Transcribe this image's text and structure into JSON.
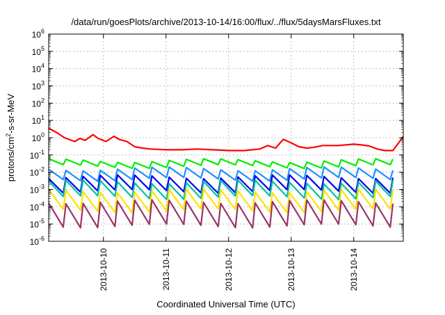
{
  "chart_data": {
    "type": "line",
    "title": "/data/run/goesPlots/archive/2013-10-14/16:00/flux/../flux/5daysMarsFluxes.txt",
    "xlabel": "Coordinated Universal Time (UTC)",
    "ylabel": {
      "base": "protons/cm",
      "sup": "2",
      "rest": "-s-sr-MeV"
    },
    "x_range": [
      "2013-10-09T03:00",
      "2013-10-14T19:00"
    ],
    "x_ticks": [
      "2013-10-10",
      "2013-10-11",
      "2013-10-12",
      "2013-10-13",
      "2013-10-14"
    ],
    "y_scale": "log",
    "ylim": [
      1e-06,
      1000000.0
    ],
    "y_ticks": [
      {
        "value": 1e-06,
        "base": "10",
        "exp": "-6"
      },
      {
        "value": 1e-05,
        "base": "10",
        "exp": "-5"
      },
      {
        "value": 0.0001,
        "base": "10",
        "exp": "-4"
      },
      {
        "value": 0.001,
        "base": "10",
        "exp": "-3"
      },
      {
        "value": 0.01,
        "base": "10",
        "exp": "-2"
      },
      {
        "value": 0.1,
        "base": "10",
        "exp": "-1"
      },
      {
        "value": 1,
        "base": "10",
        "exp": "0"
      },
      {
        "value": 10,
        "base": "10",
        "exp": "1"
      },
      {
        "value": 100,
        "base": "10",
        "exp": "2"
      },
      {
        "value": 1000,
        "base": "10",
        "exp": "3"
      },
      {
        "value": 10000,
        "base": "10",
        "exp": "4"
      },
      {
        "value": 100000,
        "base": "10",
        "exp": "5"
      },
      {
        "value": 1000000,
        "base": "10",
        "exp": "6"
      }
    ],
    "grid": true,
    "series": [
      {
        "color": "#ff0000",
        "x": [
          "2013-10-09T03:00",
          "2013-10-09T06:00",
          "2013-10-09T09:00",
          "2013-10-09T13:00",
          "2013-10-09T15:00",
          "2013-10-09T17:00",
          "2013-10-09T20:00",
          "2013-10-09T22:00",
          "2013-10-10T01:00",
          "2013-10-10T04:00",
          "2013-10-10T06:00",
          "2013-10-10T09:00",
          "2013-10-10T12:00",
          "2013-10-10T15:00",
          "2013-10-10T18:00",
          "2013-10-11T00:00",
          "2013-10-11T06:00",
          "2013-10-11T12:00",
          "2013-10-11T18:00",
          "2013-10-12T00:00",
          "2013-10-12T06:00",
          "2013-10-12T12:00",
          "2013-10-12T15:00",
          "2013-10-12T18:00",
          "2013-10-12T21:00",
          "2013-10-13T00:00",
          "2013-10-13T03:00",
          "2013-10-13T06:00",
          "2013-10-13T09:00",
          "2013-10-13T12:00",
          "2013-10-13T18:00",
          "2013-10-14T00:00",
          "2013-10-14T03:00",
          "2013-10-14T06:00",
          "2013-10-14T09:00",
          "2013-10-14T12:00",
          "2013-10-14T15:00",
          "2013-10-14T17:00",
          "2013-10-14T19:00"
        ],
        "y": [
          3.5,
          2.0,
          1.0,
          0.6,
          0.9,
          0.7,
          1.5,
          0.9,
          0.6,
          1.2,
          0.8,
          0.6,
          0.3,
          0.25,
          0.22,
          0.2,
          0.2,
          0.22,
          0.2,
          0.18,
          0.18,
          0.22,
          0.35,
          0.25,
          0.8,
          0.5,
          0.3,
          0.25,
          0.28,
          0.35,
          0.35,
          0.42,
          0.38,
          0.33,
          0.22,
          0.18,
          0.18,
          0.45,
          1.2
        ]
      },
      {
        "color": "#00ee00",
        "base": 0.022,
        "amplitude": 2.2,
        "period_hours": 6.6
      },
      {
        "color": "#1e90ff",
        "base": 0.004,
        "amplitude": 4.0,
        "period_hours": 6.6
      },
      {
        "color": "#0000ee",
        "base": 0.0008,
        "amplitude": 7.0,
        "period_hours": 6.6
      },
      {
        "color": "#00c0a0",
        "base": 0.00035,
        "amplitude": 8.0,
        "period_hours": 6.6
      },
      {
        "color": "#ffe000",
        "base": 6e-05,
        "amplitude": 14.0,
        "period_hours": 6.6
      },
      {
        "color": "#993366",
        "base": 8e-06,
        "amplitude": 25.0,
        "period_hours": 6.6
      }
    ]
  }
}
